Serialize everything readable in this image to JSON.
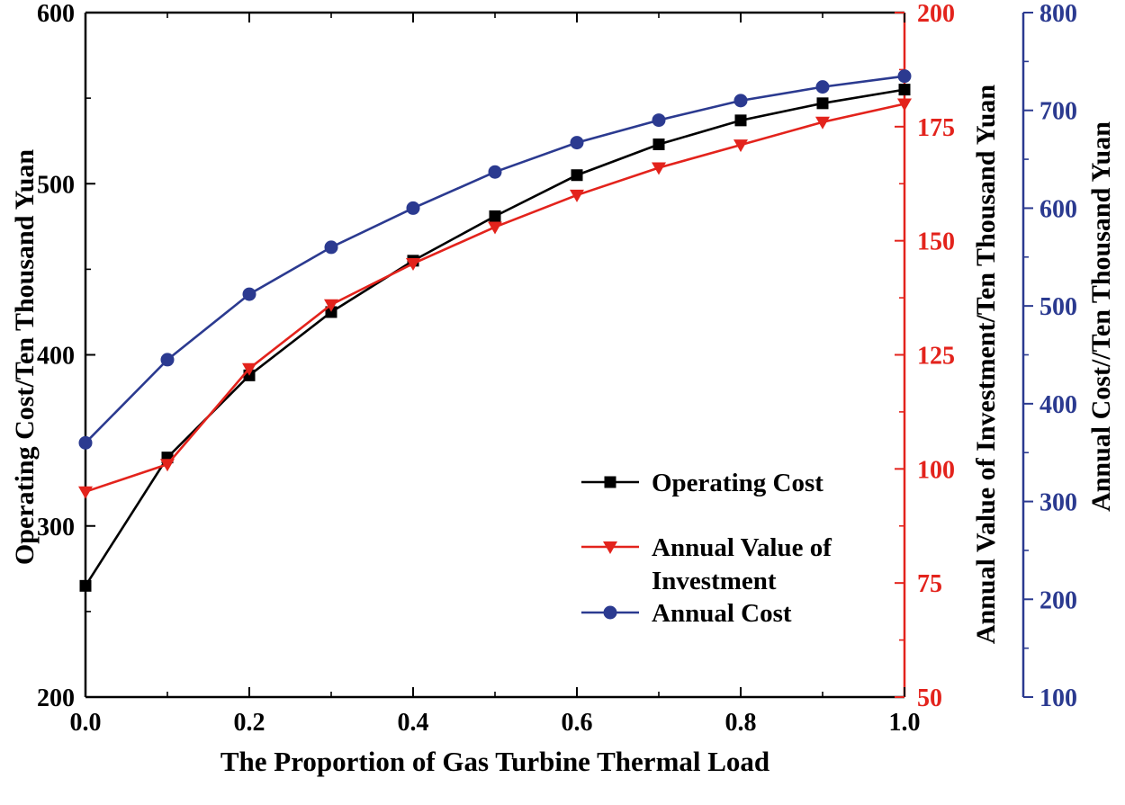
{
  "chart_data": {
    "type": "line",
    "title": "",
    "xlabel": "The Proportion of Gas Turbine Thermal Load",
    "xlim": [
      0.0,
      1.0
    ],
    "x_ticks": [
      0.0,
      0.2,
      0.4,
      0.6,
      0.8,
      1.0
    ],
    "x_minor_step": 0.1,
    "x": [
      0.0,
      0.1,
      0.2,
      0.3,
      0.4,
      0.5,
      0.6,
      0.7,
      0.8,
      0.9,
      1.0
    ],
    "grid": false,
    "axes": {
      "left": {
        "label": "Operating Cost/Ten Thousand Yuan",
        "color": "#000000",
        "lim": [
          200,
          600
        ],
        "ticks": [
          200,
          300,
          400,
          500,
          600
        ],
        "minor_step": 50
      },
      "right1": {
        "label": "Annual Value of Investment/Ten Thousand Yuan",
        "color": "#e3231c",
        "lim": [
          50,
          200
        ],
        "ticks": [
          50,
          75,
          100,
          125,
          150,
          175,
          200
        ],
        "minor_step": 12.5
      },
      "right2": {
        "label": "Annual Cost//Ten Thousand Yuan",
        "color": "#2b3a90",
        "lim": [
          100,
          800
        ],
        "ticks": [
          100,
          200,
          300,
          400,
          500,
          600,
          700,
          800
        ],
        "minor_step": 50
      }
    },
    "series": [
      {
        "name": "Operating Cost",
        "axis": "left",
        "color": "#000000",
        "marker": "square",
        "values": [
          265,
          340,
          388,
          425,
          455,
          481,
          505,
          523,
          537,
          547,
          555
        ]
      },
      {
        "name": "Annual Value of Investment",
        "axis": "right1",
        "color": "#e3231c",
        "marker": "triangle-down",
        "values": [
          95,
          101,
          122,
          136,
          145,
          153,
          160,
          166,
          171,
          176,
          180
        ]
      },
      {
        "name": "Annual Cost",
        "axis": "right2",
        "color": "#2b3a90",
        "marker": "circle",
        "values": [
          360,
          445,
          512,
          560,
          600,
          637,
          667,
          690,
          710,
          724,
          735
        ]
      }
    ],
    "legend": {
      "position": "inside-right-middle",
      "items": [
        {
          "series": 0,
          "label_lines": [
            "Operating Cost"
          ]
        },
        {
          "series": 1,
          "label_lines": [
            "Annual Value of",
            "Investment"
          ]
        },
        {
          "series": 2,
          "label_lines": [
            "Annual Cost"
          ]
        }
      ]
    }
  }
}
